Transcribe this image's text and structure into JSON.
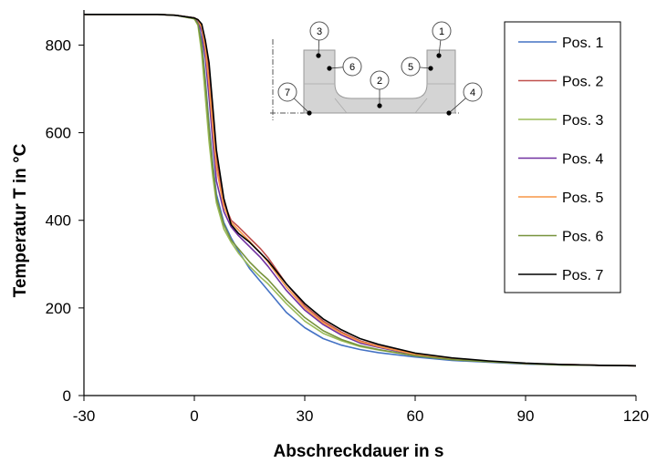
{
  "chart_data": {
    "type": "line",
    "xlabel": "Abschreckdauer  in s",
    "ylabel": "Temperatur T in °C",
    "xlim": [
      -30,
      120
    ],
    "ylim": [
      0,
      880
    ],
    "xticks": [
      -30,
      0,
      30,
      60,
      90,
      120
    ],
    "yticks": [
      0,
      200,
      400,
      600,
      800
    ],
    "grid": false,
    "legend_position": "top-right",
    "series": [
      {
        "name": "Pos. 1",
        "color": "#4472c4",
        "x": [
          -30,
          -10,
          -5,
          0,
          1,
          2,
          3,
          4,
          5,
          6,
          8,
          10,
          12,
          15,
          18,
          20,
          25,
          30,
          35,
          40,
          45,
          50,
          60,
          70,
          80,
          90,
          100,
          110,
          120
        ],
        "y": [
          870,
          870,
          868,
          862,
          850,
          810,
          720,
          620,
          530,
          460,
          395,
          360,
          330,
          290,
          260,
          240,
          190,
          155,
          130,
          115,
          105,
          98,
          88,
          80,
          76,
          72,
          70,
          69,
          68
        ]
      },
      {
        "name": "Pos. 2",
        "color": "#c0504d",
        "x": [
          -30,
          -10,
          -5,
          0,
          1,
          2,
          3,
          4,
          5,
          6,
          8,
          10,
          12,
          15,
          18,
          20,
          25,
          30,
          35,
          40,
          45,
          50,
          60,
          70,
          80,
          90,
          100,
          110,
          120
        ],
        "y": [
          870,
          870,
          868,
          862,
          858,
          845,
          800,
          740,
          640,
          540,
          440,
          400,
          385,
          360,
          335,
          315,
          255,
          205,
          170,
          145,
          125,
          113,
          95,
          85,
          78,
          73,
          71,
          69,
          68
        ]
      },
      {
        "name": "Pos. 3",
        "color": "#9bbb59",
        "x": [
          -30,
          -10,
          -5,
          0,
          1,
          2,
          3,
          4,
          5,
          6,
          8,
          10,
          12,
          15,
          18,
          20,
          25,
          30,
          35,
          40,
          45,
          50,
          60,
          70,
          80,
          90,
          100,
          110,
          120
        ],
        "y": [
          870,
          870,
          868,
          860,
          845,
          780,
          680,
          580,
          500,
          440,
          380,
          350,
          325,
          295,
          270,
          255,
          210,
          170,
          142,
          125,
          112,
          104,
          91,
          82,
          77,
          73,
          70,
          69,
          68
        ]
      },
      {
        "name": "Pos. 4",
        "color": "#7030a0",
        "x": [
          -30,
          -10,
          -5,
          0,
          1,
          2,
          3,
          4,
          5,
          6,
          8,
          10,
          12,
          15,
          18,
          20,
          25,
          30,
          35,
          40,
          45,
          50,
          60,
          70,
          80,
          90,
          100,
          110,
          120
        ],
        "y": [
          870,
          870,
          868,
          862,
          855,
          830,
          770,
          680,
          580,
          490,
          420,
          385,
          365,
          340,
          315,
          295,
          240,
          195,
          162,
          138,
          120,
          110,
          93,
          84,
          77,
          73,
          71,
          69,
          68
        ]
      },
      {
        "name": "Pos. 5",
        "color": "#f79646",
        "x": [
          -30,
          -10,
          -5,
          0,
          1,
          2,
          3,
          4,
          5,
          6,
          8,
          10,
          12,
          15,
          18,
          20,
          25,
          30,
          35,
          40,
          45,
          50,
          60,
          70,
          80,
          90,
          100,
          110,
          120
        ],
        "y": [
          870,
          870,
          868,
          862,
          857,
          840,
          790,
          710,
          610,
          520,
          430,
          395,
          378,
          352,
          325,
          305,
          248,
          200,
          166,
          142,
          123,
          112,
          94,
          85,
          78,
          73,
          71,
          69,
          68
        ]
      },
      {
        "name": "Pos. 6",
        "color": "#77933c",
        "x": [
          -30,
          -10,
          -5,
          0,
          1,
          2,
          3,
          4,
          5,
          6,
          8,
          10,
          12,
          15,
          18,
          20,
          25,
          30,
          35,
          40,
          45,
          50,
          60,
          70,
          80,
          90,
          100,
          110,
          120
        ],
        "y": [
          870,
          870,
          868,
          860,
          848,
          800,
          710,
          610,
          520,
          450,
          390,
          355,
          335,
          305,
          280,
          265,
          218,
          178,
          148,
          128,
          114,
          105,
          91,
          82,
          77,
          73,
          70,
          69,
          68
        ]
      },
      {
        "name": "Pos. 7",
        "color": "#000000",
        "x": [
          -30,
          -10,
          -5,
          0,
          1,
          2,
          3,
          4,
          5,
          6,
          8,
          10,
          12,
          15,
          18,
          20,
          25,
          30,
          35,
          40,
          45,
          50,
          60,
          70,
          80,
          90,
          100,
          110,
          120
        ],
        "y": [
          870,
          870,
          868,
          862,
          858,
          848,
          810,
          760,
          660,
          560,
          450,
          390,
          370,
          350,
          325,
          308,
          255,
          210,
          175,
          150,
          130,
          117,
          97,
          86,
          79,
          74,
          71,
          69,
          68
        ]
      }
    ],
    "inset": {
      "labels": [
        "1",
        "2",
        "3",
        "4",
        "5",
        "6",
        "7"
      ]
    }
  }
}
